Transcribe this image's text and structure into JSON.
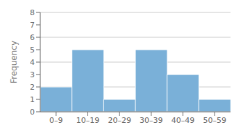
{
  "chart_data": {
    "type": "bar",
    "ylabel": "Frequency",
    "categories": [
      "0–9",
      "10–19",
      "20–29",
      "30–39",
      "40–49",
      "50–59"
    ],
    "values": [
      2,
      5,
      1,
      5,
      3,
      1
    ],
    "color": "#7ab0d8",
    "ylim": [
      0,
      8
    ],
    "yticks": [
      0,
      1,
      2,
      3,
      4,
      5,
      6,
      7,
      8
    ],
    "grid": true
  }
}
